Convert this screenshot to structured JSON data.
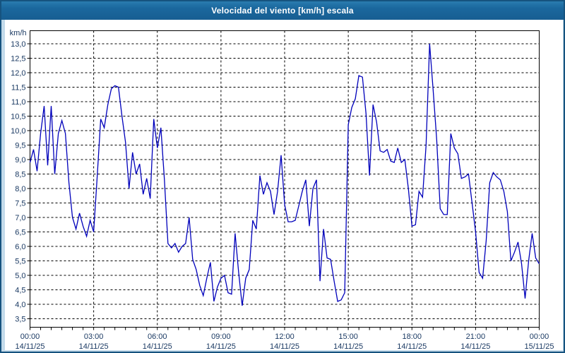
{
  "window": {
    "title": "Velocidad del viento [km/h] escala"
  },
  "colors": {
    "titlebar_bg": "#1b689e",
    "outer_bg": "#c3daea",
    "border": "#16537f",
    "panel_bg": "#ffffff",
    "line": "#0000bb",
    "axis_label": "#1b3a63",
    "grid": "#000000",
    "frame": "#000000"
  },
  "chart_data": {
    "type": "line",
    "title": "Velocidad del viento [km/h] escala",
    "ylabel": "km/h",
    "xlabel": "",
    "ylim": [
      3.5,
      13.0
    ],
    "y_step": 0.5,
    "grid": "dashed horizontal every 0.5, dashed vertical every 3h",
    "legend_position": "none",
    "series_name": "Velocidad del viento [km/h]",
    "x_interval_minutes": 10,
    "x_range_hours": [
      0,
      24
    ],
    "y_tick_labels": [
      "13,0",
      "12,5",
      "12,0",
      "11,5",
      "11,0",
      "10,5",
      "10,0",
      "9,5",
      "9,0",
      "8,5",
      "8,0",
      "7,5",
      "7,0",
      "6,5",
      "6,0",
      "5,5",
      "5,0",
      "4,5",
      "4,0",
      "3,5"
    ],
    "y_tick_values": [
      13.0,
      12.5,
      12.0,
      11.5,
      11.0,
      10.5,
      10.0,
      9.5,
      9.0,
      8.5,
      8.0,
      7.5,
      7.0,
      6.5,
      6.0,
      5.5,
      5.0,
      4.5,
      4.0,
      3.5
    ],
    "x_ticks": [
      {
        "hour": 0,
        "label": "00:00",
        "date": "14/11/25"
      },
      {
        "hour": 3,
        "label": "03:00",
        "date": "14/11/25"
      },
      {
        "hour": 6,
        "label": "06:00",
        "date": "14/11/25"
      },
      {
        "hour": 9,
        "label": "09:00",
        "date": "14/11/25"
      },
      {
        "hour": 12,
        "label": "12:00",
        "date": "14/11/25"
      },
      {
        "hour": 15,
        "label": "15:00",
        "date": "14/11/25"
      },
      {
        "hour": 18,
        "label": "18:00",
        "date": "14/11/25"
      },
      {
        "hour": 21,
        "label": "21:00",
        "date": "14/11/25"
      },
      {
        "hour": 24,
        "label": "00:00",
        "date": "15/11/25"
      }
    ],
    "minor_tick_minutes": 30,
    "values": [
      8.9,
      9.35,
      8.6,
      9.9,
      10.85,
      8.8,
      10.85,
      8.5,
      9.9,
      10.35,
      9.9,
      8.2,
      7.0,
      6.6,
      7.15,
      6.7,
      6.35,
      6.9,
      6.5,
      8.4,
      10.4,
      10.1,
      10.9,
      11.45,
      11.55,
      11.5,
      10.5,
      9.6,
      8.0,
      9.25,
      8.5,
      8.85,
      7.8,
      8.35,
      7.65,
      10.4,
      9.4,
      10.1,
      8.3,
      6.1,
      5.95,
      6.1,
      5.8,
      6.0,
      6.1,
      7.0,
      5.55,
      5.2,
      4.65,
      4.3,
      4.9,
      5.45,
      4.1,
      4.6,
      4.9,
      5.0,
      4.4,
      4.35,
      6.45,
      5.1,
      3.95,
      4.9,
      5.2,
      6.9,
      6.6,
      8.45,
      7.8,
      8.2,
      7.9,
      7.1,
      7.9,
      9.15,
      7.45,
      6.85,
      6.85,
      6.9,
      7.4,
      7.9,
      8.3,
      6.7,
      8.0,
      8.3,
      4.8,
      6.6,
      5.6,
      5.55,
      4.8,
      4.1,
      4.15,
      4.4,
      10.2,
      10.8,
      11.1,
      11.9,
      11.85,
      10.6,
      8.45,
      10.9,
      10.3,
      9.3,
      9.25,
      9.35,
      8.95,
      8.9,
      9.4,
      8.9,
      9.0,
      8.0,
      6.7,
      6.75,
      7.9,
      7.7,
      9.5,
      13.0,
      11.4,
      9.7,
      7.3,
      7.1,
      7.1,
      9.9,
      9.4,
      9.2,
      8.35,
      8.4,
      8.5,
      7.5,
      6.5,
      5.1,
      4.9,
      6.2,
      8.2,
      8.55,
      8.4,
      8.3,
      7.9,
      7.2,
      5.5,
      5.8,
      6.15,
      5.4,
      4.2,
      5.5,
      6.45,
      5.6,
      5.4
    ]
  }
}
